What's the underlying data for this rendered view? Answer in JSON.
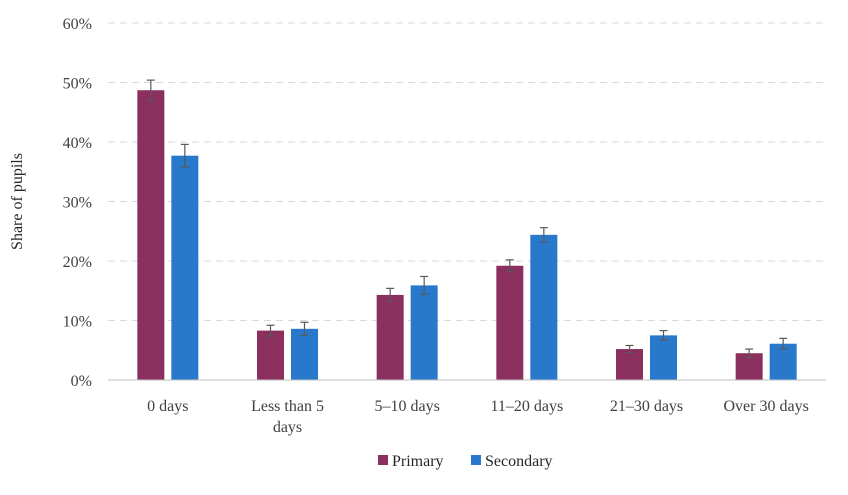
{
  "chart_data": {
    "type": "bar",
    "categories": [
      [
        "0 days"
      ],
      [
        "Less than 5",
        "days"
      ],
      [
        "5–10 days"
      ],
      [
        "11–20 days"
      ],
      [
        "21–30 days"
      ],
      [
        "Over 30 days"
      ]
    ],
    "series": [
      {
        "name": "Primary",
        "color": "#8B2F5E",
        "values": [
          48.7,
          8.3,
          14.3,
          19.2,
          5.2,
          4.5
        ],
        "error": [
          1.7,
          0.9,
          1.1,
          1.0,
          0.6,
          0.7
        ]
      },
      {
        "name": "Secondary",
        "color": "#2878CC",
        "values": [
          37.7,
          8.6,
          15.9,
          24.4,
          7.5,
          6.1
        ],
        "error": [
          1.9,
          1.1,
          1.5,
          1.2,
          0.8,
          0.9
        ]
      }
    ],
    "title": "",
    "xlabel": "",
    "ylabel": "Share of pupils",
    "ylim": [
      0,
      60
    ],
    "yticks": [
      0,
      10,
      20,
      30,
      40,
      50,
      60
    ],
    "yticks_labels": [
      "0%",
      "10%",
      "20%",
      "30%",
      "40%",
      "50%",
      "60%"
    ],
    "grid": "horizontal-dashed",
    "legend_position": "bottom-center"
  }
}
